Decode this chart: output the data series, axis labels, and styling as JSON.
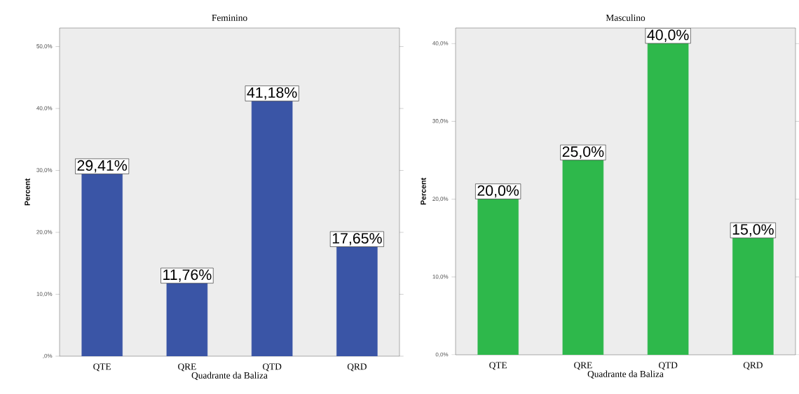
{
  "chart_data": [
    {
      "type": "bar",
      "title": "Feminino",
      "xlabel": "Quadrante da Baliza",
      "ylabel": "Percent",
      "categories": [
        "QTE",
        "QRE",
        "QTD",
        "QRD"
      ],
      "values": [
        29.41,
        11.76,
        41.18,
        17.65
      ],
      "value_labels": [
        "29,41%",
        "11,76%",
        "41,18%",
        "17,65%"
      ],
      "color": "#3a55a6",
      "ylim": [
        0,
        53
      ],
      "yticks": [
        {
          "value": 0,
          "label": ",0%"
        },
        {
          "value": 10,
          "label": "10,0%"
        },
        {
          "value": 20,
          "label": "20,0%"
        },
        {
          "value": 30,
          "label": "30,0%"
        },
        {
          "value": 40,
          "label": "40,0%"
        },
        {
          "value": 50,
          "label": "50,0%"
        }
      ]
    },
    {
      "type": "bar",
      "title": "Masculino",
      "xlabel": "Quadrante da Baliza",
      "ylabel": "Percent",
      "categories": [
        "QTE",
        "QRE",
        "QTD",
        "QRD"
      ],
      "values": [
        20.0,
        25.0,
        40.0,
        15.0
      ],
      "value_labels": [
        "20,0%",
        "25,0%",
        "40,0%",
        "15,0%"
      ],
      "color": "#2eb84b",
      "ylim": [
        0,
        42
      ],
      "yticks": [
        {
          "value": 0,
          "label": "0,0%"
        },
        {
          "value": 10,
          "label": "10,0%"
        },
        {
          "value": 20,
          "label": "20,0%"
        },
        {
          "value": 30,
          "label": "30,0%"
        },
        {
          "value": 40,
          "label": "40,0%"
        }
      ]
    }
  ]
}
